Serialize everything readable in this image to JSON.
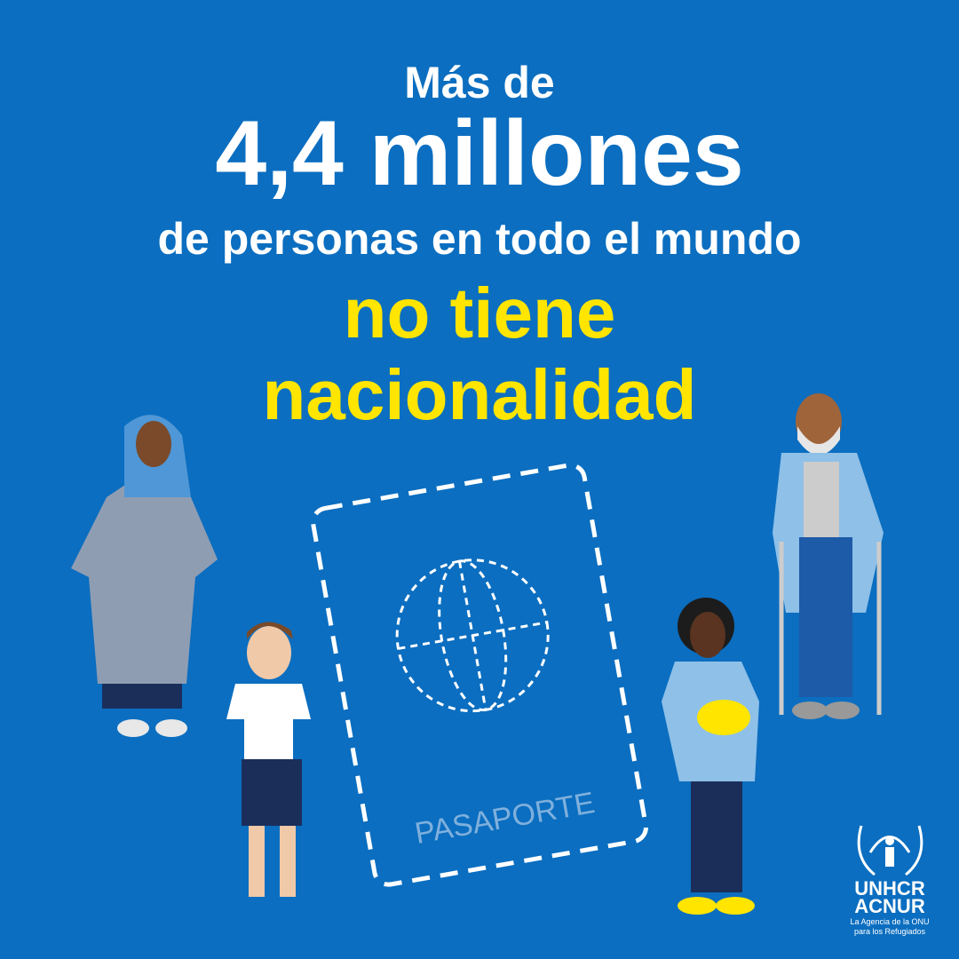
{
  "headline": {
    "line1": "Más de",
    "line2": "4,4 millones",
    "line3": "de personas en todo el mundo",
    "line4": "no tiene",
    "line5": "nacionalidad"
  },
  "passport": {
    "label": "PASAPORTE"
  },
  "logo": {
    "name1": "UNHCR",
    "name2": "ACNUR",
    "tagline1": "La Agencia de la ONU",
    "tagline2": "para los Refugiados"
  }
}
